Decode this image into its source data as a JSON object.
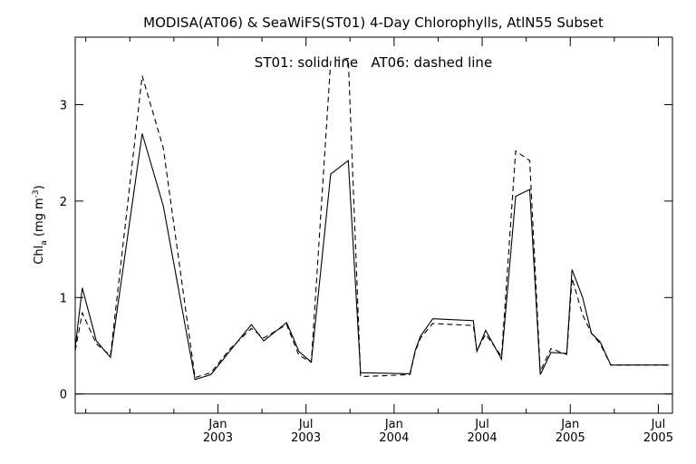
{
  "chart_data": {
    "type": "line",
    "title": "MODISA(AT06) & SeaWiFS(ST01) 4-Day Chlorophylls, AtlN55 Subset",
    "annotation": "ST01: solid line   AT06: dashed line",
    "ylabel": {
      "main": "Chl",
      "sub": "a",
      "units": "(mg m",
      "sup": "-3",
      "close": ")"
    },
    "xlim": [
      2002.19,
      2005.58
    ],
    "ylim": [
      -0.2,
      3.7
    ],
    "yticks": [
      0,
      1,
      2,
      3
    ],
    "xticks": [
      {
        "x": 2003.0,
        "month": "Jan",
        "year": "2003"
      },
      {
        "x": 2003.5,
        "month": "Jul",
        "year": "2003"
      },
      {
        "x": 2004.0,
        "month": "Jan",
        "year": "2004"
      },
      {
        "x": 2004.5,
        "month": "Jul",
        "year": "2004"
      },
      {
        "x": 2005.0,
        "month": "Jan",
        "year": "2005"
      },
      {
        "x": 2005.5,
        "month": "Jul",
        "year": "2005"
      }
    ],
    "minor_xticks": [
      2002.25,
      2002.5,
      2002.75,
      2003.25,
      2003.75,
      2004.25,
      2004.75,
      2005.25
    ],
    "zero_line": true,
    "series": [
      {
        "name": "ST01",
        "style": "solid",
        "x": [
          2002.19,
          2002.23,
          2002.31,
          2002.39,
          2002.57,
          2002.69,
          2002.87,
          2002.96,
          2003.07,
          2003.19,
          2003.26,
          2003.39,
          2003.46,
          2003.53,
          2003.64,
          2003.74,
          2003.81,
          2004.09,
          2004.12,
          2004.15,
          2004.22,
          2004.45,
          2004.47,
          2004.52,
          2004.61,
          2004.69,
          2004.77,
          2004.83,
          2004.89,
          2004.98,
          2005.01,
          2005.07,
          2005.12,
          2005.17,
          2005.23,
          2005.33,
          2005.42,
          2005.48,
          2005.56
        ],
        "y": [
          0.48,
          1.1,
          0.55,
          0.38,
          2.7,
          1.95,
          0.15,
          0.2,
          0.45,
          0.72,
          0.55,
          0.74,
          0.44,
          0.33,
          2.28,
          2.42,
          0.22,
          0.21,
          0.45,
          0.6,
          0.78,
          0.76,
          0.44,
          0.66,
          0.36,
          2.05,
          2.12,
          0.2,
          0.43,
          0.42,
          1.29,
          1.0,
          0.63,
          0.54,
          0.3,
          0.3,
          0.3,
          0.3,
          0.3
        ]
      },
      {
        "name": "AT06",
        "style": "dashed",
        "x": [
          2002.19,
          2002.23,
          2002.31,
          2002.39,
          2002.57,
          2002.69,
          2002.87,
          2002.96,
          2003.07,
          2003.19,
          2003.26,
          2003.39,
          2003.46,
          2003.53,
          2003.64,
          2003.74,
          2003.81,
          2004.09,
          2004.12,
          2004.15,
          2004.22,
          2004.45,
          2004.47,
          2004.52,
          2004.61,
          2004.69,
          2004.77,
          2004.83,
          2004.89,
          2004.98,
          2005.01,
          2005.07,
          2005.12,
          2005.17,
          2005.23,
          2005.33,
          2005.42,
          2005.48,
          2005.56
        ],
        "y": [
          0.45,
          0.84,
          0.52,
          0.4,
          3.3,
          2.55,
          0.17,
          0.22,
          0.47,
          0.68,
          0.58,
          0.72,
          0.4,
          0.33,
          3.45,
          3.48,
          0.18,
          0.2,
          0.44,
          0.58,
          0.73,
          0.71,
          0.45,
          0.62,
          0.39,
          2.52,
          2.42,
          0.23,
          0.47,
          0.41,
          1.2,
          0.82,
          0.63,
          0.52,
          0.3,
          0.3,
          0.3,
          0.3,
          0.3
        ]
      }
    ]
  }
}
